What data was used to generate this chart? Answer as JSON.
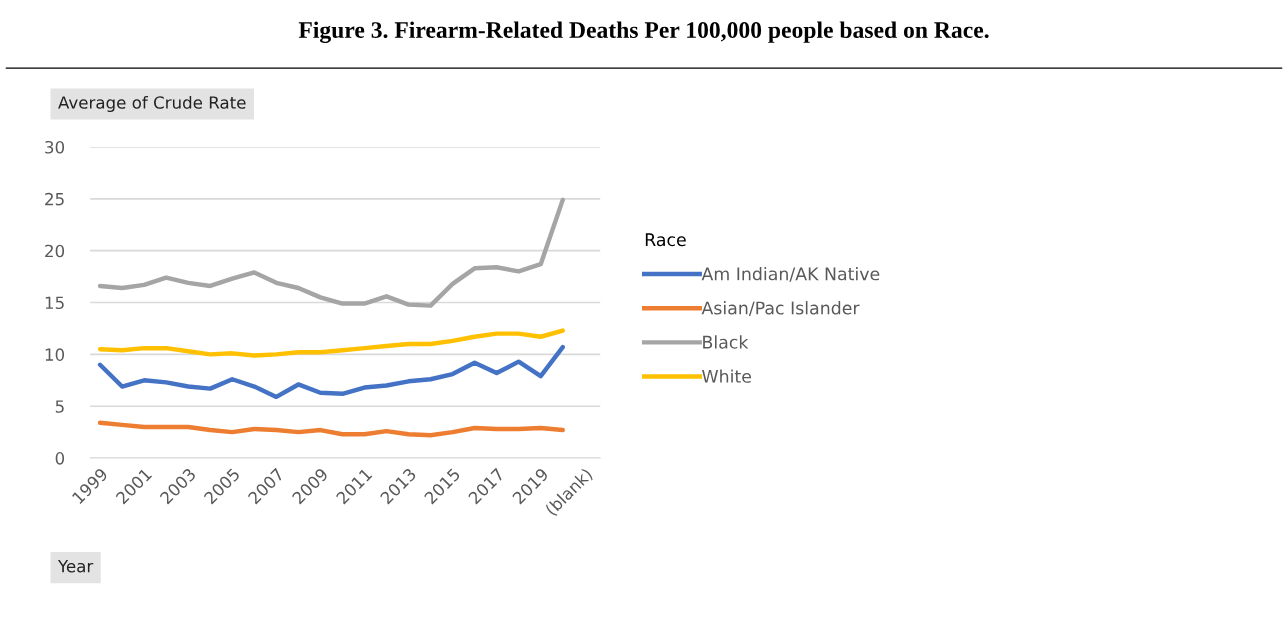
{
  "chart_data": {
    "type": "line",
    "title": "Figure 3. Firearm-Related Deaths Per 100,000 people based on Race.",
    "ylabel": "Average of Crude Rate",
    "xlabel": "Year",
    "legend_title": "Race",
    "categories": [
      "1999",
      null,
      "2001",
      null,
      "2003",
      null,
      "2005",
      null,
      "2007",
      null,
      "2009",
      null,
      "2011",
      null,
      "2013",
      null,
      "2015",
      null,
      "2017",
      null,
      "2019",
      null,
      "(blank)"
    ],
    "series": [
      {
        "name": "Am Indian/AK Native",
        "color": "#4472c4",
        "values": [
          9.0,
          6.9,
          7.5,
          7.3,
          6.9,
          6.7,
          7.6,
          6.9,
          5.9,
          7.1,
          6.3,
          6.2,
          6.8,
          7.0,
          7.4,
          7.6,
          8.1,
          9.2,
          8.2,
          9.3,
          7.9,
          10.7,
          null
        ]
      },
      {
        "name": "Asian/Pac Islander",
        "color": "#ed7d31",
        "values": [
          3.4,
          3.2,
          3.0,
          3.0,
          3.0,
          2.7,
          2.5,
          2.8,
          2.7,
          2.5,
          2.7,
          2.3,
          2.3,
          2.6,
          2.3,
          2.2,
          2.5,
          2.9,
          2.8,
          2.8,
          2.9,
          2.7,
          null
        ]
      },
      {
        "name": "Black",
        "color": "#a5a5a5",
        "values": [
          16.6,
          16.4,
          16.7,
          17.4,
          16.9,
          16.6,
          17.3,
          17.9,
          16.9,
          16.4,
          15.5,
          14.9,
          14.9,
          15.6,
          14.8,
          14.7,
          16.8,
          18.3,
          18.4,
          18.0,
          18.7,
          24.9,
          null
        ]
      },
      {
        "name": "White",
        "color": "#ffc000",
        "values": [
          10.5,
          10.4,
          10.6,
          10.6,
          10.3,
          10.0,
          10.1,
          9.9,
          10.0,
          10.2,
          10.2,
          10.4,
          10.6,
          10.8,
          11.0,
          11.0,
          11.3,
          11.7,
          12.0,
          12.0,
          11.7,
          12.3,
          null
        ]
      }
    ],
    "ylim": [
      0,
      30
    ],
    "yticks": [
      0,
      5,
      10,
      15,
      20,
      25,
      30
    ],
    "grid": "y",
    "legend": "right",
    "marker": "none",
    "line_style": "solid"
  }
}
